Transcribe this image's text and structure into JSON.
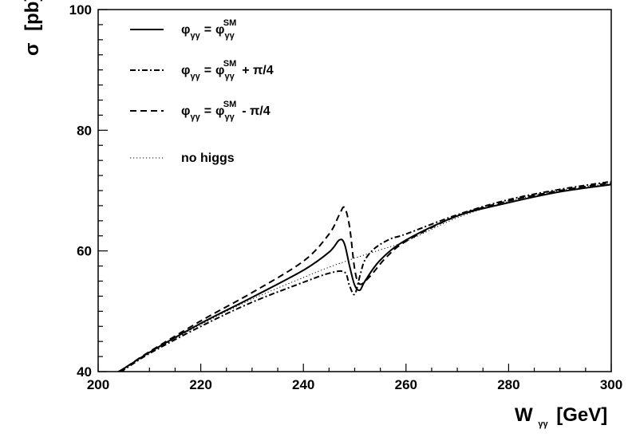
{
  "chart_data": {
    "type": "line",
    "title": "",
    "xlabel": {
      "main": "W",
      "sub": "γγ",
      "unit": "[GeV]"
    },
    "ylabel": {
      "main": "σ",
      "unit": "[pb]"
    },
    "xlim": [
      200,
      300
    ],
    "ylim": [
      40,
      100
    ],
    "xticks": [
      "200",
      "220",
      "240",
      "260",
      "280",
      "300"
    ],
    "yticks": [
      "40",
      "60",
      "80",
      "100"
    ],
    "grid": false,
    "legend_position": "top-left",
    "series": [
      {
        "name": "φγγ = φγγSM",
        "style": "solid",
        "x": [
          200,
          204,
          210,
          220,
          230,
          240,
          245,
          247,
          248,
          249,
          250,
          251,
          252,
          255,
          260,
          270,
          280,
          290,
          300
        ],
        "y": [
          38.5,
          40.0,
          43.2,
          48.0,
          52.3,
          56.8,
          59.8,
          61.8,
          61.2,
          57.5,
          54.3,
          53.5,
          55.0,
          58.5,
          61.8,
          65.8,
          68.0,
          69.8,
          71.0
        ]
      },
      {
        "name": "φγγ = φγγSM + π/4",
        "style": "dashdot",
        "x": [
          200,
          204,
          210,
          220,
          230,
          240,
          245,
          248,
          249,
          250,
          251,
          252,
          254,
          257,
          260,
          270,
          280,
          290,
          300
        ],
        "y": [
          38.5,
          39.8,
          43.0,
          47.5,
          51.5,
          54.8,
          56.3,
          56.5,
          54.2,
          52.8,
          55.8,
          58.5,
          60.5,
          62.0,
          62.8,
          66.0,
          68.5,
          70.2,
          71.5
        ]
      },
      {
        "name": "φγγ = φγγSM - π/4",
        "style": "dashed",
        "x": [
          200,
          204,
          210,
          220,
          230,
          240,
          245,
          247,
          248,
          249,
          250,
          251,
          253,
          256,
          260,
          270,
          280,
          290,
          300
        ],
        "y": [
          38.5,
          40.0,
          43.3,
          48.4,
          53.1,
          58.3,
          62.8,
          66.0,
          67.2,
          64.0,
          57.0,
          54.5,
          55.8,
          58.8,
          61.6,
          65.8,
          68.3,
          70.0,
          71.3
        ]
      },
      {
        "name": "no higgs",
        "style": "dotted",
        "x": [
          200,
          204,
          210,
          220,
          230,
          240,
          245,
          250,
          255,
          260,
          270,
          280,
          290,
          300
        ],
        "y": [
          38.5,
          40.0,
          43.1,
          47.8,
          52.0,
          55.6,
          57.3,
          58.8,
          60.2,
          61.6,
          65.5,
          68.2,
          70.0,
          71.2
        ]
      }
    ]
  },
  "legend": [
    {
      "style": "solid",
      "lhs": "φ",
      "lhs_sub": "γγ",
      "rhs": "φ",
      "rhs_sub": "γγ",
      "rhs_sup": "SM",
      "suffix": ""
    },
    {
      "style": "dashdot",
      "lhs": "φ",
      "lhs_sub": "γγ",
      "rhs": "φ",
      "rhs_sub": "γγ",
      "rhs_sup": "SM",
      "suffix": "+ π/4"
    },
    {
      "style": "dashed",
      "lhs": "φ",
      "lhs_sub": "γγ",
      "rhs": "φ",
      "rhs_sub": "γγ",
      "rhs_sup": "SM",
      "suffix": "- π/4"
    },
    {
      "style": "dotted",
      "text": "no higgs"
    }
  ]
}
